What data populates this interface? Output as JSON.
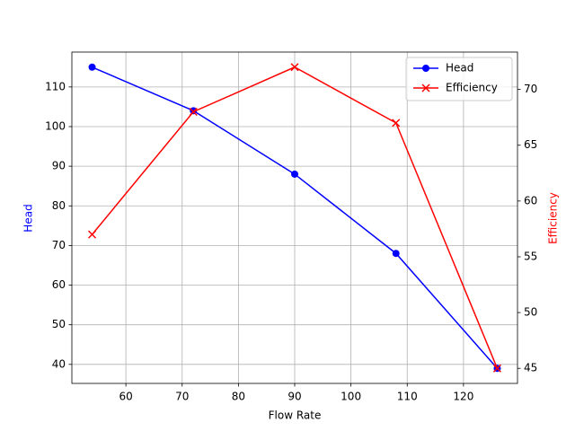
{
  "chart_data": {
    "type": "line",
    "xlabel": "Flow Rate",
    "ylabel": "Head",
    "y2label": "Efficiency",
    "x": [
      54,
      72,
      90,
      108,
      126
    ],
    "series": [
      {
        "name": "Head",
        "color": "#0000ff",
        "marker": "o",
        "values": [
          115,
          104,
          88,
          68,
          39
        ]
      },
      {
        "name": "Efficiency",
        "color": "#ff0000",
        "marker": "x",
        "axis": "y2",
        "values": [
          57,
          68,
          72,
          67,
          45
        ]
      }
    ],
    "xlim": [
      50.4,
      129.6
    ],
    "xticks": [
      60,
      70,
      80,
      90,
      100,
      110,
      120
    ],
    "ylim": [
      35.2,
      118.8
    ],
    "yticks": [
      40,
      50,
      60,
      70,
      80,
      90,
      100,
      110
    ],
    "y2lim": [
      43.65,
      73.35
    ],
    "y2ticks": [
      45,
      50,
      55,
      60,
      65,
      70
    ],
    "grid": true,
    "legend": "upper right"
  }
}
